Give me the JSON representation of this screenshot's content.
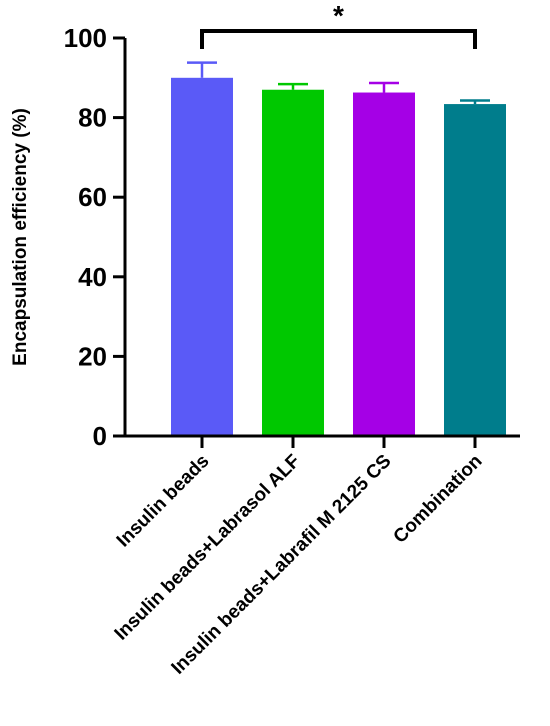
{
  "chart_data": {
    "type": "bar",
    "ylabel": "Encapsulation efficiency (%)",
    "xlabel": "",
    "ylim": [
      0,
      100
    ],
    "yticks": [
      0,
      20,
      40,
      60,
      80,
      100
    ],
    "categories": [
      "Insulin beads",
      "Insulin beads+Labrasol ALF",
      "Insulin beads+Labrafil M 2125 CS",
      "Combination"
    ],
    "values": [
      90.0,
      87.0,
      86.3,
      83.4
    ],
    "errors": [
      3.8,
      1.4,
      2.4,
      0.9
    ],
    "colors": [
      "#5a5af7",
      "#00c800",
      "#a500e6",
      "#007d8c"
    ],
    "grid": false,
    "legend": "none",
    "significance": {
      "from": 0,
      "to": 3,
      "label": "*"
    }
  }
}
